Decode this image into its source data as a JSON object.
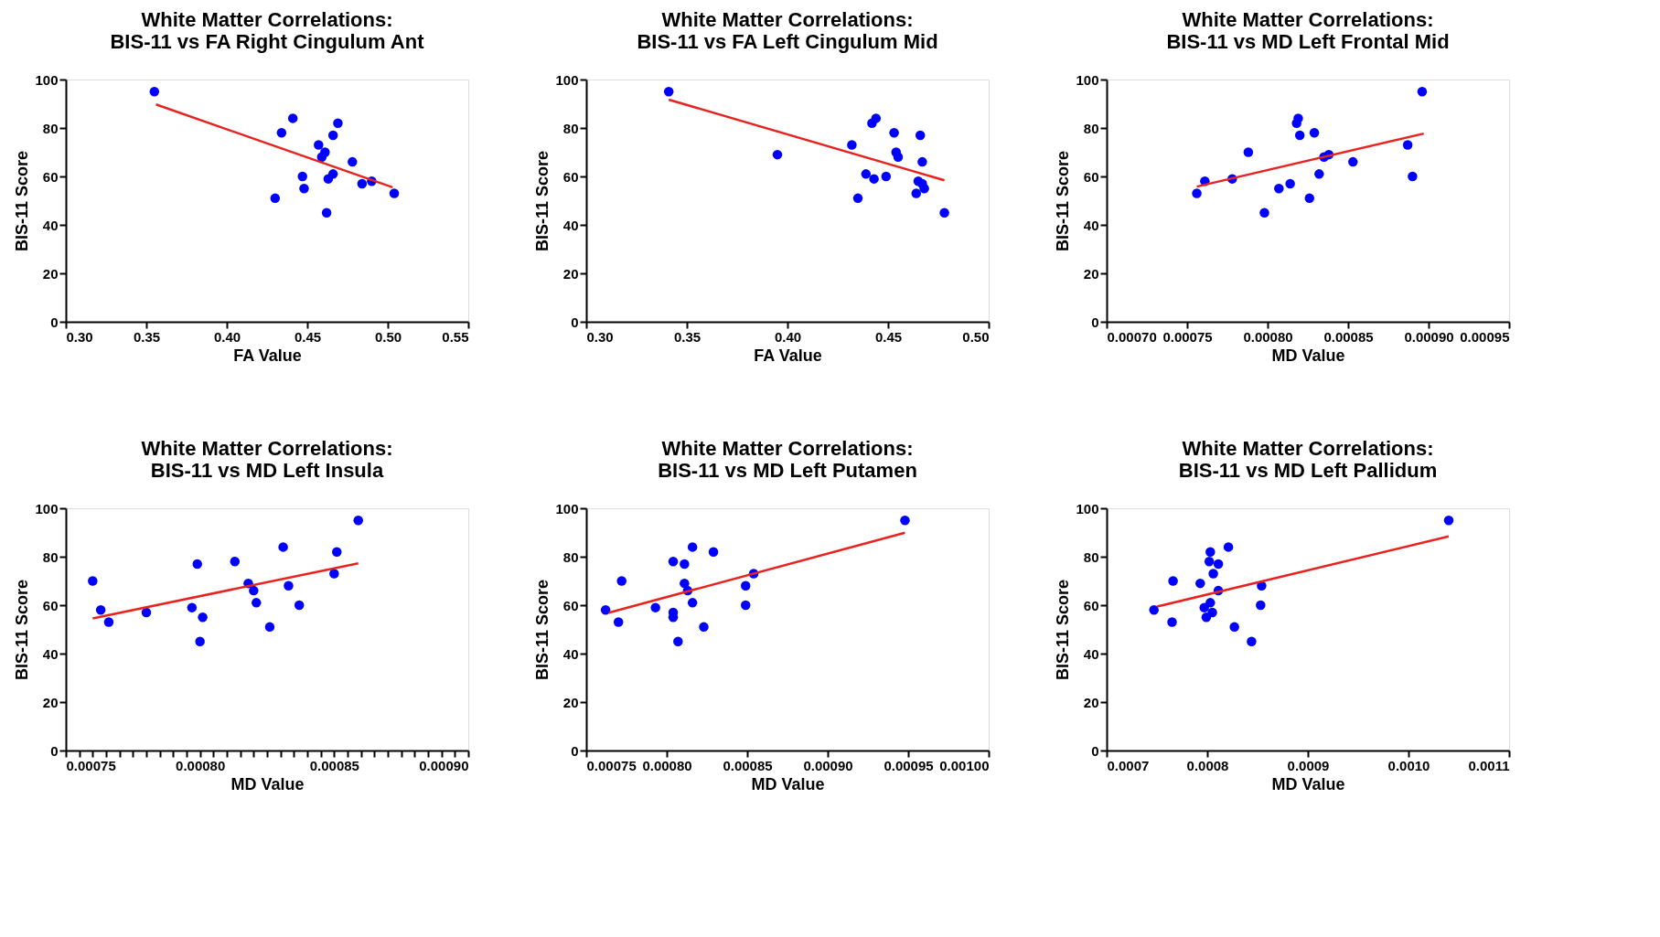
{
  "chart_data": [
    {
      "type": "scatter",
      "title": [
        "White Matter Correlations:",
        "BIS-11 vs FA Right Cingulum Ant"
      ],
      "xlabel": "FA Value",
      "ylabel": "BIS-11 Score",
      "xlim": [
        0.3,
        0.55
      ],
      "ylim": [
        0,
        100
      ],
      "xticks": [
        {
          "value": 0.3,
          "label": "0.30"
        },
        {
          "value": 0.35,
          "label": "0.35"
        },
        {
          "value": 0.4,
          "label": "0.40"
        },
        {
          "value": 0.45,
          "label": "0.45"
        },
        {
          "value": 0.5,
          "label": "0.50"
        },
        {
          "value": 0.55,
          "label": "0.55"
        }
      ],
      "yticks": [
        0,
        20,
        40,
        60,
        80,
        100
      ],
      "grid": false,
      "series": [
        {
          "marker": "circle",
          "color": "#0000ff",
          "x": [
            0.355,
            0.434,
            0.441,
            0.469,
            0.466,
            0.457,
            0.461,
            0.459,
            0.478,
            0.466,
            0.463,
            0.447,
            0.448,
            0.43,
            0.462,
            0.484,
            0.49,
            0.504
          ],
          "values": [
            95,
            78,
            84,
            82,
            77,
            73,
            70,
            68,
            66,
            61,
            59,
            60,
            55,
            51,
            45,
            57,
            58,
            53
          ]
        },
        {
          "type": "line",
          "marker": "none",
          "color": "#e8231f",
          "x": [
            0.356,
            0.503
          ],
          "values": [
            89.7,
            55.5
          ]
        }
      ]
    },
    {
      "type": "scatter",
      "title": [
        "White Matter Correlations:",
        "BIS-11 vs FA Left Cingulum Mid"
      ],
      "xlabel": "FA Value",
      "ylabel": "BIS-11 Score",
      "xlim": [
        0.3,
        0.5
      ],
      "ylim": [
        0,
        100
      ],
      "xticks": [
        {
          "value": 0.3,
          "label": "0.30"
        },
        {
          "value": 0.35,
          "label": "0.35"
        },
        {
          "value": 0.4,
          "label": "0.40"
        },
        {
          "value": 0.45,
          "label": "0.45"
        },
        {
          "value": 0.5,
          "label": "0.50"
        }
      ],
      "yticks": [
        0,
        20,
        40,
        60,
        80,
        100
      ],
      "grid": false,
      "series": [
        {
          "marker": "circle",
          "color": "#0000ff",
          "x": [
            0.341,
            0.395,
            0.432,
            0.435,
            0.439,
            0.443,
            0.442,
            0.444,
            0.449,
            0.453,
            0.454,
            0.455,
            0.466,
            0.467,
            0.465,
            0.467,
            0.468,
            0.464,
            0.478
          ],
          "values": [
            95,
            69,
            73,
            51,
            61,
            59,
            82,
            84,
            60,
            78,
            70,
            68,
            77,
            66,
            58,
            57,
            55,
            53,
            45
          ]
        },
        {
          "type": "line",
          "marker": "none",
          "color": "#e8231f",
          "x": [
            0.341,
            0.478
          ],
          "values": [
            91.7,
            58.4
          ]
        }
      ]
    },
    {
      "type": "scatter",
      "title": [
        "White Matter Correlations:",
        "BIS-11 vs MD Left Frontal Mid"
      ],
      "xlabel": "MD Value",
      "ylabel": "BIS-11 Score",
      "xlim": [
        0.0007,
        0.00095
      ],
      "ylim": [
        0,
        100
      ],
      "xticks": [
        {
          "value": 0.0007,
          "label": "0.00070"
        },
        {
          "value": 0.00075,
          "label": "0.00075"
        },
        {
          "value": 0.0008,
          "label": "0.00080"
        },
        {
          "value": 0.00085,
          "label": "0.00085"
        },
        {
          "value": 0.0009,
          "label": "0.00090"
        },
        {
          "value": 0.00095,
          "label": "0.00095"
        }
      ],
      "yticks": [
        0,
        20,
        40,
        60,
        80,
        100
      ],
      "grid": false,
      "series": [
        {
          "marker": "circle",
          "color": "#0000ff",
          "x": [
            0.000756,
            0.000761,
            0.000778,
            0.000788,
            0.000798,
            0.000807,
            0.000814,
            0.000818,
            0.000819,
            0.00082,
            0.000829,
            0.000826,
            0.000832,
            0.000835,
            0.000838,
            0.000853,
            0.000887,
            0.00089,
            0.000896
          ],
          "values": [
            53,
            58,
            59,
            70,
            45,
            55,
            57,
            82,
            84,
            77,
            78,
            51,
            61,
            68,
            69,
            66,
            73,
            60,
            95
          ]
        },
        {
          "type": "line",
          "marker": "none",
          "color": "#e8231f",
          "x": [
            0.000756,
            0.000897
          ],
          "values": [
            55.8,
            77.7
          ]
        }
      ]
    },
    {
      "type": "scatter",
      "title": [
        "White Matter Correlations:",
        "BIS-11 vs MD Left Insula"
      ],
      "xlabel": "MD Value",
      "ylabel": "BIS-11 Score",
      "xlim": [
        0.00075,
        0.0009
      ],
      "ylim": [
        0,
        100
      ],
      "xticks": [
        {
          "value": 0.00075,
          "label": "0.00075"
        },
        {
          "value": 0.000755,
          "label": null
        },
        {
          "value": 0.00076,
          "label": null
        },
        {
          "value": 0.000765,
          "label": null
        },
        {
          "value": 0.00077,
          "label": null
        },
        {
          "value": 0.000775,
          "label": null
        },
        {
          "value": 0.00078,
          "label": null
        },
        {
          "value": 0.000785,
          "label": null
        },
        {
          "value": 0.00079,
          "label": null
        },
        {
          "value": 0.000795,
          "label": null
        },
        {
          "value": 0.0008,
          "label": "0.00080"
        },
        {
          "value": 0.000805,
          "label": null
        },
        {
          "value": 0.00081,
          "label": null
        },
        {
          "value": 0.000815,
          "label": null
        },
        {
          "value": 0.00082,
          "label": null
        },
        {
          "value": 0.000825,
          "label": null
        },
        {
          "value": 0.00083,
          "label": null
        },
        {
          "value": 0.000835,
          "label": null
        },
        {
          "value": 0.00084,
          "label": null
        },
        {
          "value": 0.000845,
          "label": null
        },
        {
          "value": 0.00085,
          "label": "0.00085"
        },
        {
          "value": 0.000855,
          "label": null
        },
        {
          "value": 0.00086,
          "label": null
        },
        {
          "value": 0.000865,
          "label": null
        },
        {
          "value": 0.00087,
          "label": null
        },
        {
          "value": 0.000875,
          "label": null
        },
        {
          "value": 0.00088,
          "label": null
        },
        {
          "value": 0.000885,
          "label": null
        },
        {
          "value": 0.00089,
          "label": null
        },
        {
          "value": 0.000895,
          "label": null
        },
        {
          "value": 0.0009,
          "label": "0.00090"
        }
      ],
      "yticks": [
        0,
        20,
        40,
        60,
        80,
        100
      ],
      "grid": false,
      "series": [
        {
          "marker": "circle",
          "color": "#0000ff",
          "x": [
            0.00076,
            0.000763,
            0.000766,
            0.00078,
            0.000797,
            0.000799,
            0.000801,
            0.0008,
            0.000813,
            0.000818,
            0.00082,
            0.000821,
            0.000826,
            0.000831,
            0.000833,
            0.000837,
            0.00085,
            0.000851,
            0.000859
          ],
          "values": [
            70,
            58,
            53,
            57,
            59,
            77,
            55,
            45,
            78,
            69,
            66,
            61,
            51,
            84,
            68,
            60,
            73,
            82,
            95
          ]
        },
        {
          "type": "line",
          "marker": "none",
          "color": "#e8231f",
          "x": [
            0.00076,
            0.000859
          ],
          "values": [
            54.5,
            77.3
          ]
        }
      ]
    },
    {
      "type": "scatter",
      "title": [
        "White Matter Correlations:",
        "BIS-11 vs MD Left Putamen"
      ],
      "xlabel": "MD Value",
      "ylabel": "BIS-11 Score",
      "xlim": [
        0.00075,
        0.001
      ],
      "ylim": [
        0,
        100
      ],
      "xticks": [
        {
          "value": 0.00075,
          "label": "0.00075"
        },
        {
          "value": 0.0008,
          "label": "0.00080"
        },
        {
          "value": 0.00085,
          "label": "0.00085"
        },
        {
          "value": 0.0009,
          "label": "0.00090"
        },
        {
          "value": 0.00095,
          "label": "0.00095"
        },
        {
          "value": 0.001,
          "label": "0.00100"
        }
      ],
      "yticks": [
        0,
        20,
        40,
        60,
        80,
        100
      ],
      "grid": false,
      "series": [
        {
          "marker": "circle",
          "color": "#0000ff",
          "x": [
            0.000762,
            0.00077,
            0.000772,
            0.000793,
            0.000804,
            0.000804,
            0.000804,
            0.000807,
            0.000811,
            0.000811,
            0.000813,
            0.000816,
            0.000816,
            0.000823,
            0.000829,
            0.000849,
            0.000849,
            0.000854,
            0.000948
          ],
          "values": [
            58,
            53,
            70,
            59,
            78,
            57,
            55,
            45,
            77,
            69,
            66,
            84,
            61,
            51,
            82,
            68,
            60,
            73,
            95
          ]
        },
        {
          "type": "line",
          "marker": "none",
          "color": "#e8231f",
          "x": [
            0.000764,
            0.000948
          ],
          "values": [
            56.9,
            89.9
          ]
        }
      ]
    },
    {
      "type": "scatter",
      "title": [
        "White Matter Correlations:",
        "BIS-11 vs MD Left Pallidum"
      ],
      "xlabel": "MD Value",
      "ylabel": "BIS-11 Score",
      "xlim": [
        0.0007,
        0.0011
      ],
      "ylim": [
        0,
        100
      ],
      "xticks": [
        {
          "value": 0.0007,
          "label": "0.0007"
        },
        {
          "value": 0.0008,
          "label": "0.0008"
        },
        {
          "value": 0.0009,
          "label": "0.0009"
        },
        {
          "value": 0.001,
          "label": "0.0010"
        },
        {
          "value": 0.0011,
          "label": "0.0011"
        }
      ],
      "yticks": [
        0,
        20,
        40,
        60,
        80,
        100
      ],
      "grid": false,
      "series": [
        {
          "marker": "circle",
          "color": "#0000ff",
          "x": [
            0.000747,
            0.000765,
            0.000766,
            0.000793,
            0.000803,
            0.000802,
            0.000811,
            0.000806,
            0.000821,
            0.000811,
            0.000803,
            0.000797,
            0.000805,
            0.000799,
            0.000827,
            0.000844,
            0.000854,
            0.000853,
            0.00104
          ],
          "values": [
            58,
            53,
            70,
            69,
            82,
            78,
            77,
            73,
            84,
            66,
            61,
            59,
            57,
            55,
            51,
            45,
            68,
            60,
            95
          ]
        },
        {
          "type": "line",
          "marker": "none",
          "color": "#e8231f",
          "x": [
            0.00075,
            0.00104
          ],
          "values": [
            59.4,
            88.4
          ]
        }
      ]
    }
  ]
}
